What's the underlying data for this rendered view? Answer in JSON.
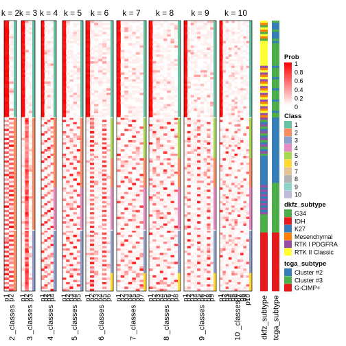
{
  "chart_data": {
    "type": "heatmap",
    "panels": [
      {
        "label": "k = 2",
        "classes": 2,
        "column_labels": [
          "p1",
          "p2"
        ],
        "sublabel": "2 _classes"
      },
      {
        "label": "k = 3",
        "classes": 3,
        "column_labels": [
          "p1",
          "p2",
          "p3"
        ],
        "sublabel": "3 _classes"
      },
      {
        "label": "k = 4",
        "classes": 4,
        "column_labels": [
          "p1",
          "p2",
          "p3",
          "p4"
        ],
        "sublabel": "4 _classes"
      },
      {
        "label": "k = 5",
        "classes": 5,
        "column_labels": [
          "p1",
          "p2",
          "p3",
          "p4",
          "p5"
        ],
        "sublabel": "5 _classes"
      },
      {
        "label": "k = 6",
        "classes": 6,
        "column_labels": [
          "p1",
          "p2",
          "p3",
          "p4",
          "p5",
          "p6"
        ],
        "sublabel": "6 _classes"
      },
      {
        "label": "k = 7",
        "classes": 7,
        "column_labels": [
          "p1",
          "p2",
          "p3",
          "p4",
          "p5",
          "p6",
          "p7"
        ],
        "sublabel": "7 _classes"
      },
      {
        "label": "k = 8",
        "classes": 8,
        "column_labels": [
          "p1",
          "p2",
          "p3",
          "p4",
          "p5",
          "p6",
          "p7",
          "p8"
        ],
        "sublabel": "8 _classes"
      },
      {
        "label": "k = 9",
        "classes": 9,
        "column_labels": [
          "p1",
          "p2",
          "p3",
          "p4",
          "p5",
          "p6",
          "p7",
          "p8",
          "p9"
        ],
        "sublabel": "9 _classes"
      },
      {
        "label": "k = 10",
        "classes": 10,
        "column_labels": [
          "p1",
          "p2",
          "p3",
          "p4",
          "p5",
          "p6",
          "p7",
          "p8",
          "p9",
          "p10"
        ],
        "sublabel": "10 _classes"
      }
    ],
    "annotation_columns": [
      "dkfz_subtype",
      "tcga_subtype"
    ],
    "legends": {
      "prob": {
        "title": "Prob",
        "ticks": [
          "1",
          "0.8",
          "0.6",
          "0.4",
          "0.2",
          "0"
        ],
        "colors": [
          "#ff0000",
          "#ffffff"
        ]
      },
      "class": {
        "title": "Class",
        "items": [
          {
            "label": "1",
            "color": "#66c2a5"
          },
          {
            "label": "2",
            "color": "#fc8d62"
          },
          {
            "label": "3",
            "color": "#8da0cb"
          },
          {
            "label": "4",
            "color": "#e78ac3"
          },
          {
            "label": "5",
            "color": "#a6d854"
          },
          {
            "label": "6",
            "color": "#ffd92f"
          },
          {
            "label": "7",
            "color": "#e5c494"
          },
          {
            "label": "8",
            "color": "#b3b3b3"
          },
          {
            "label": "9",
            "color": "#8dd3c7"
          },
          {
            "label": "10",
            "color": "#bebada"
          }
        ]
      },
      "dkfz_subtype": {
        "title": "dkfz_subtype",
        "items": [
          {
            "label": "G34",
            "color": "#4daf4a"
          },
          {
            "label": "IDH",
            "color": "#e41a1c"
          },
          {
            "label": "K27",
            "color": "#377eb8"
          },
          {
            "label": "Mesenchymal",
            "color": "#ff7f00"
          },
          {
            "label": "RTK I PDGFRA",
            "color": "#984ea3"
          },
          {
            "label": "RTK II Classic",
            "color": "#ffff33"
          }
        ]
      },
      "tcga_subtype": {
        "title": "tcga_subtype",
        "items": [
          {
            "label": "Cluster #2",
            "color": "#377eb8"
          },
          {
            "label": "Cluster #3",
            "color": "#4daf4a"
          },
          {
            "label": "G-CIMP+",
            "color": "#e41a1c"
          }
        ]
      }
    },
    "row_groups_fraction": [
      0.36,
      0.42,
      0.22
    ]
  }
}
